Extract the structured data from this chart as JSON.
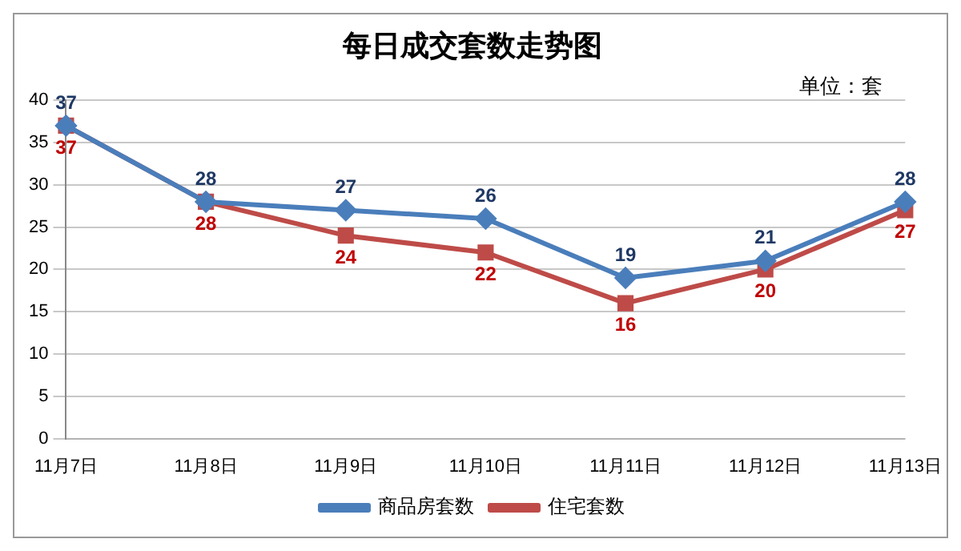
{
  "chart_data": {
    "type": "line",
    "title": "每日成交套数走势图",
    "annotations": [
      "单位：套"
    ],
    "categories": [
      "11月7日",
      "11月8日",
      "11月9日",
      "11月10日",
      "11月11日",
      "11月12日",
      "11月13日"
    ],
    "series": [
      {
        "name": "商品房套数",
        "color": "#4a7ebb",
        "marker": "diamond",
        "values": [
          37,
          28,
          27,
          26,
          19,
          21,
          28
        ]
      },
      {
        "name": "住宅套数",
        "color": "#be4b48",
        "marker": "square",
        "values": [
          37,
          28,
          24,
          22,
          16,
          20,
          27
        ]
      }
    ],
    "ylim": [
      0,
      40
    ],
    "yticks": [
      0,
      5,
      10,
      15,
      20,
      25,
      30,
      35,
      40
    ],
    "grid": "y",
    "legend": "bottom",
    "data_labels": true
  }
}
